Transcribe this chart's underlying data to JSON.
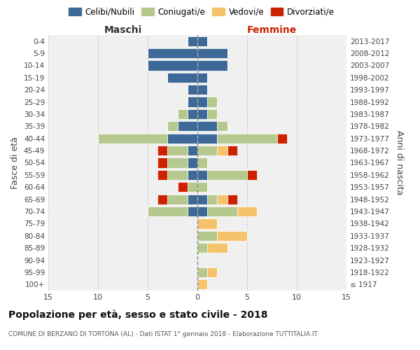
{
  "age_groups": [
    "100+",
    "95-99",
    "90-94",
    "85-89",
    "80-84",
    "75-79",
    "70-74",
    "65-69",
    "60-64",
    "55-59",
    "50-54",
    "45-49",
    "40-44",
    "35-39",
    "30-34",
    "25-29",
    "20-24",
    "15-19",
    "10-14",
    "5-9",
    "0-4"
  ],
  "birth_years": [
    "≤ 1917",
    "1918-1922",
    "1923-1927",
    "1928-1932",
    "1933-1937",
    "1938-1942",
    "1943-1947",
    "1948-1952",
    "1953-1957",
    "1958-1962",
    "1963-1967",
    "1968-1972",
    "1973-1977",
    "1978-1982",
    "1983-1987",
    "1988-1992",
    "1993-1997",
    "1998-2002",
    "2003-2007",
    "2008-2012",
    "2013-2017"
  ],
  "colors": {
    "celibi": "#3c6997",
    "coniugati": "#b5c98e",
    "vedovi": "#f5c36b",
    "divorziati": "#cc2200"
  },
  "maschi": {
    "celibi": [
      0,
      0,
      0,
      0,
      0,
      0,
      1,
      1,
      0,
      1,
      1,
      1,
      3,
      2,
      1,
      1,
      1,
      3,
      5,
      5,
      1
    ],
    "coniugati": [
      0,
      0,
      0,
      0,
      0,
      0,
      4,
      2,
      1,
      2,
      2,
      2,
      7,
      1,
      1,
      0,
      0,
      0,
      0,
      0,
      0
    ],
    "vedovi": [
      0,
      0,
      0,
      0,
      0,
      0,
      0,
      0,
      0,
      0,
      0,
      0,
      0,
      0,
      0,
      0,
      0,
      0,
      0,
      0,
      0
    ],
    "divorziati": [
      0,
      0,
      0,
      0,
      0,
      0,
      0,
      1,
      1,
      1,
      1,
      1,
      0,
      0,
      0,
      0,
      0,
      0,
      0,
      0,
      0
    ]
  },
  "femmine": {
    "celibi": [
      0,
      0,
      0,
      0,
      0,
      0,
      1,
      1,
      0,
      1,
      0,
      0,
      2,
      2,
      1,
      1,
      1,
      1,
      3,
      3,
      1
    ],
    "coniugati": [
      0,
      1,
      0,
      1,
      2,
      0,
      3,
      1,
      1,
      4,
      1,
      2,
      6,
      1,
      1,
      1,
      0,
      0,
      0,
      0,
      0
    ],
    "vedovi": [
      1,
      1,
      0,
      2,
      3,
      2,
      2,
      1,
      0,
      0,
      0,
      1,
      0,
      0,
      0,
      0,
      0,
      0,
      0,
      0,
      0
    ],
    "divorziati": [
      0,
      0,
      0,
      0,
      0,
      0,
      0,
      1,
      0,
      1,
      0,
      1,
      1,
      0,
      0,
      0,
      0,
      0,
      0,
      0,
      0
    ]
  },
  "xlim": 15,
  "title": "Popolazione per età, sesso e stato civile - 2018",
  "subtitle": "COMUNE DI BERZANO DI TORTONA (AL) - Dati ISTAT 1° gennaio 2018 - Elaborazione TUTTITALIA.IT",
  "ylabel": "Fasce di età",
  "ylabel_right": "Anni di nascita",
  "xlabel_left": "Maschi",
  "xlabel_right": "Femmine",
  "legend_labels": [
    "Celibi/Nubili",
    "Coniugati/e",
    "Vedovi/e",
    "Divorziati/e"
  ],
  "bg_color": "#ffffff",
  "plot_bg": "#f0f0f0",
  "grid_color": "#cccccc"
}
